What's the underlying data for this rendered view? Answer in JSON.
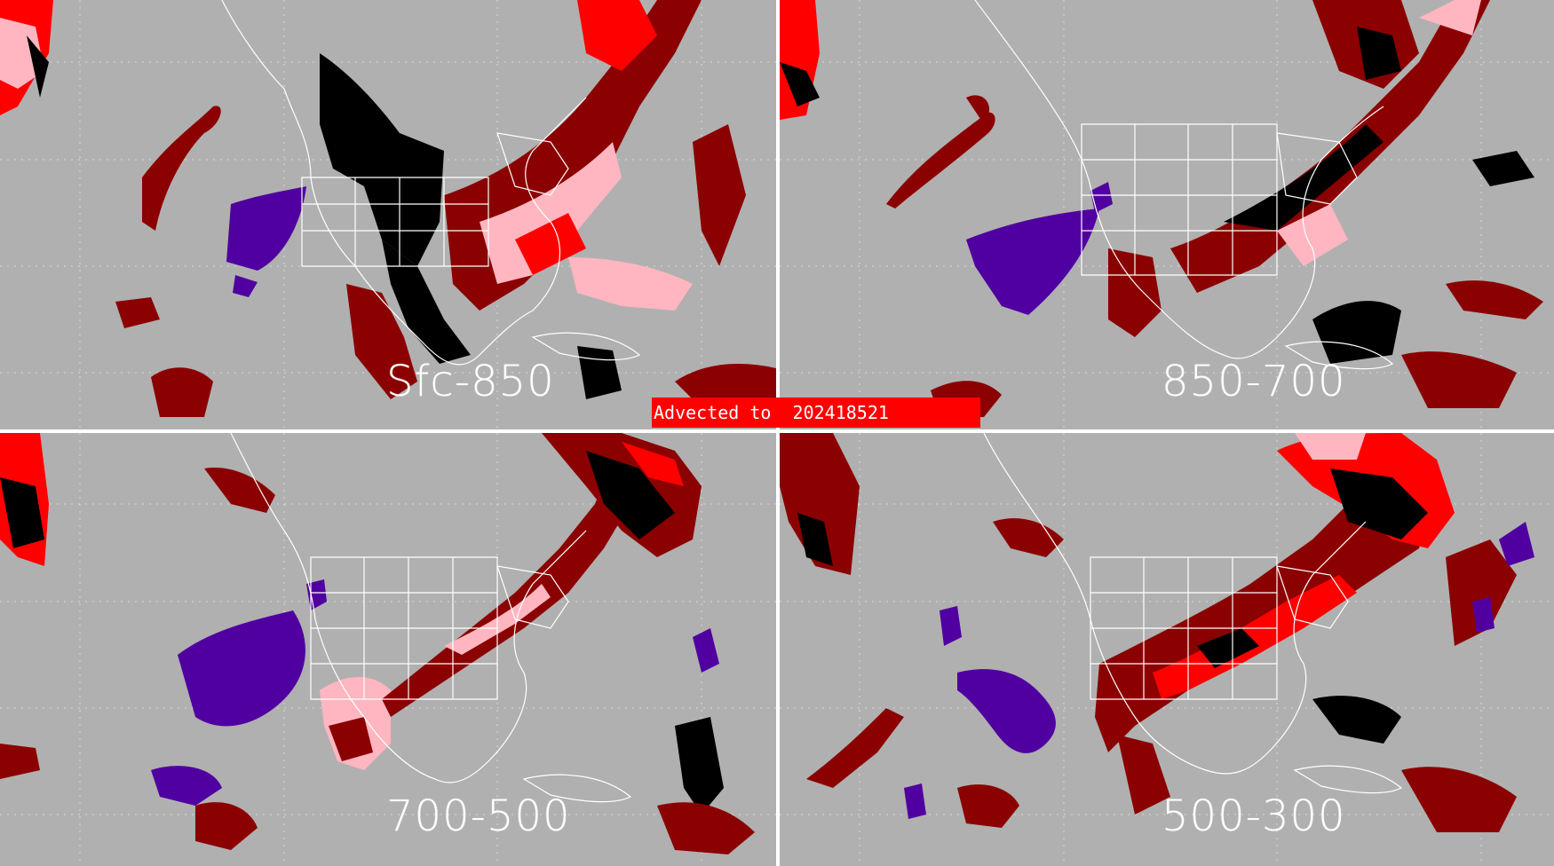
{
  "panels": [
    {
      "id": "p-tl",
      "label": "Sfc-850"
    },
    {
      "id": "p-tr",
      "label": "850-700"
    },
    {
      "id": "p-bl",
      "label": "700-500"
    },
    {
      "id": "p-br",
      "label": "500-300"
    }
  ],
  "banner": {
    "prefix": "Advected to",
    "value": "202418521"
  },
  "colors": {
    "background": "#b0b0b0",
    "dark_red": "#8b0000",
    "red": "#ff0000",
    "pink": "#ffb6c1",
    "black": "#000000",
    "purple": "#5000a0",
    "coastline": "#ffffff"
  }
}
